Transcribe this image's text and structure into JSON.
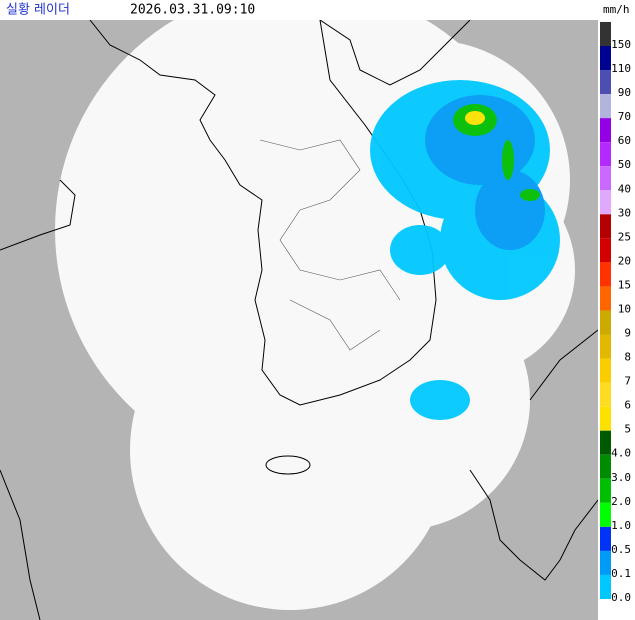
{
  "header": {
    "title": "실황 레이더",
    "timestamp": "2026.03.31.09:10",
    "unit": "mm/h"
  },
  "legend": [
    {
      "label": "150",
      "color": "#333333"
    },
    {
      "label": "110",
      "color": "#000390"
    },
    {
      "label": "90",
      "color": "#4c4eb1"
    },
    {
      "label": "70",
      "color": "#b3b4de"
    },
    {
      "label": "60",
      "color": "#9300e4"
    },
    {
      "label": "50",
      "color": "#b329ff"
    },
    {
      "label": "40",
      "color": "#c969ff"
    },
    {
      "label": "30",
      "color": "#e0a9ff"
    },
    {
      "label": "25",
      "color": "#b40000"
    },
    {
      "label": "20",
      "color": "#d20000"
    },
    {
      "label": "15",
      "color": "#ff3200"
    },
    {
      "label": "10",
      "color": "#ff6600"
    },
    {
      "label": "9",
      "color": "#ccaa00"
    },
    {
      "label": "8",
      "color": "#e0b900"
    },
    {
      "label": "7",
      "color": "#f9cd00"
    },
    {
      "label": "6",
      "color": "#ffdc1f"
    },
    {
      "label": "5",
      "color": "#ffe100"
    },
    {
      "label": "4.0",
      "color": "#005a00"
    },
    {
      "label": "3.0",
      "color": "#008c00"
    },
    {
      "label": "2.0",
      "color": "#00be00"
    },
    {
      "label": "1.0",
      "color": "#00ff00"
    },
    {
      "label": "0.5",
      "color": "#0033f5"
    },
    {
      "label": "0.1",
      "color": "#009bf5"
    },
    {
      "label": "0.0",
      "color": "#00c8ff"
    }
  ]
}
